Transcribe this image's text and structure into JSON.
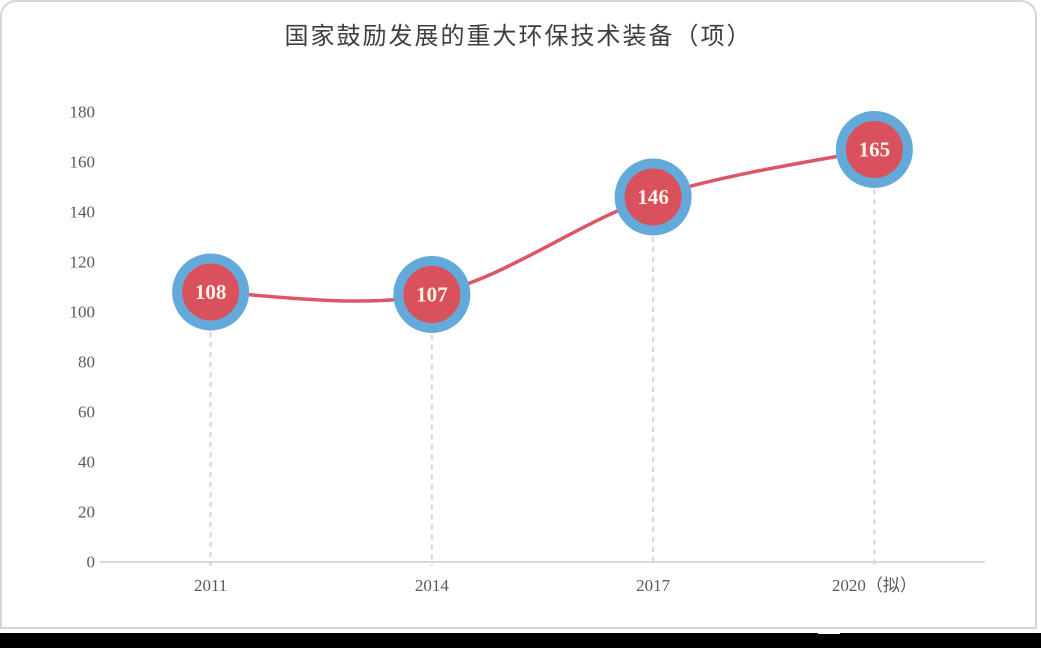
{
  "chart_data": {
    "type": "line",
    "title": "国家鼓励发展的重大环保技术装备（项）",
    "categories": [
      "2011",
      "2014",
      "2017",
      "2020（拟）"
    ],
    "series": [
      {
        "name": "国家鼓励发展的重大环保技术装备",
        "values": [
          108,
          107,
          146,
          165
        ]
      }
    ],
    "value_labels": [
      "108",
      "107",
      "146",
      "165"
    ],
    "xlabel": "",
    "ylabel": "",
    "ylim": [
      0,
      180
    ],
    "yticks": [
      0,
      20,
      40,
      60,
      80,
      100,
      120,
      140,
      160,
      180
    ],
    "grid": false,
    "legend_position": "none",
    "marker_style": "circle-ring",
    "drop_lines": "dashed",
    "line_smooth": true,
    "colors": {
      "line": "#dc5763",
      "marker_fill": "#d9515d",
      "marker_ring": "#63aadb",
      "value_label_text": "#fbf3e6",
      "axis_line": "#d9d9d9",
      "drop_line": "#d5d5d5",
      "tick_text": "#5a5a5a",
      "title_text": "#3f3f3f",
      "card_border": "#d6d6d6",
      "bottom_bar": "#000000"
    }
  }
}
